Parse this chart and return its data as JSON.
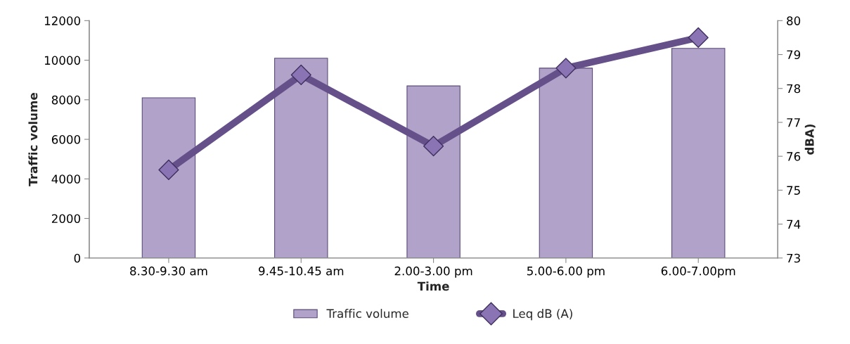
{
  "chart_data": {
    "type": "bar",
    "xlabel": "Time",
    "ylabel": "Traffic volume",
    "y2label": "dBA)",
    "categories": [
      "8.30-9.30 am",
      "9.45-10.45 am",
      "2.00-3.00 pm",
      "5.00-6.00 pm",
      "6.00-7.00pm"
    ],
    "series": [
      {
        "name": "Traffic volume",
        "color": "#b1a2c9",
        "values": [
          8100,
          10100,
          8700,
          9600,
          10600
        ]
      },
      {
        "name": "Leq dB (A)",
        "type": "line",
        "axis": "y2",
        "color": "#65508a",
        "marker": "diamond",
        "values": [
          75.6,
          78.4,
          76.3,
          78.6,
          79.5
        ]
      }
    ],
    "ylim": [
      0,
      12000
    ],
    "yticks": [
      0,
      2000,
      4000,
      6000,
      8000,
      10000,
      12000
    ],
    "y2lim": [
      73,
      80
    ],
    "y2ticks": [
      73,
      74,
      75,
      76,
      77,
      78,
      79,
      80
    ],
    "legend": "bottom",
    "grid": false
  }
}
